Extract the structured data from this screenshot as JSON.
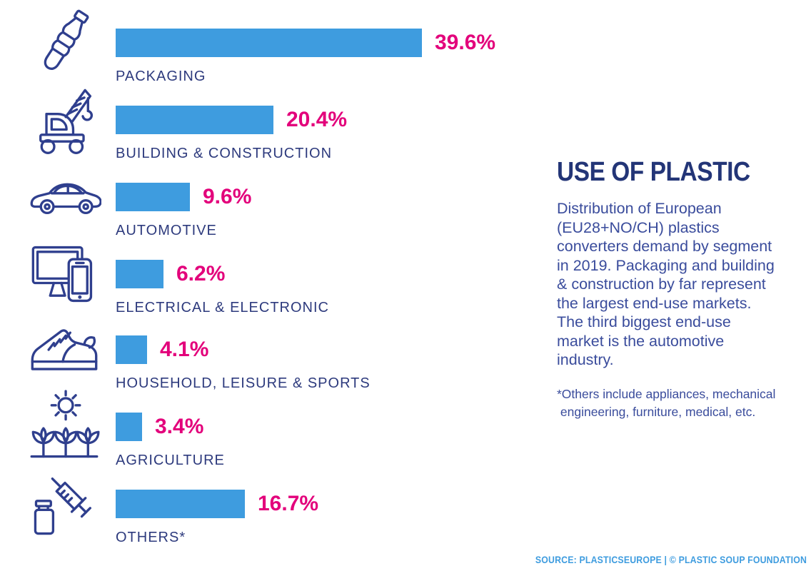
{
  "panel": {
    "title": "USE OF PLASTIC",
    "description": "Distribution of European\n(EU28+NO/CH) plastics\nconverters demand by segment\nin 2019. Packaging and building\n& construction by far represent\nthe largest end-use markets.\nThe third biggest end-use\nmarket is the automotive\nindustry.",
    "footnote": "*Others include appliances, mechanical\n engineering, furniture, medical, etc."
  },
  "source": {
    "prefix": "SOURCE: PLASTICSEUROPE | © ",
    "org": "PLASTIC SOUP FOUNDATION"
  },
  "colors": {
    "bar": "#3E9CDF",
    "percent": "#E3007B",
    "label": "#2D3A7D",
    "title": "#233577",
    "body": "#3A4C9C",
    "icon": "#2F3F8E",
    "source": "#3E9CDF"
  },
  "chart_data": {
    "type": "bar",
    "orientation": "horizontal",
    "title": "USE OF PLASTIC",
    "unit": "%",
    "xlim": [
      0,
      40
    ],
    "grid": false,
    "legend": "none",
    "categories": [
      "PACKAGING",
      "BUILDING & CONSTRUCTION",
      "AUTOMOTIVE",
      "ELECTRICAL & ELECTRONIC",
      "HOUSEHOLD, LEISURE & SPORTS",
      "AGRICULTURE",
      "OTHERS*"
    ],
    "values": [
      39.6,
      20.4,
      9.6,
      6.2,
      4.1,
      3.4,
      16.7
    ],
    "value_labels": [
      "39.6%",
      "20.4%",
      "9.6%",
      "6.2%",
      "4.1%",
      "3.4%",
      "16.7%"
    ],
    "icons": [
      "plastic-bottle",
      "construction-crane",
      "car",
      "monitor-and-phone",
      "sneaker",
      "sun-and-plants",
      "syringe-and-vial"
    ]
  }
}
